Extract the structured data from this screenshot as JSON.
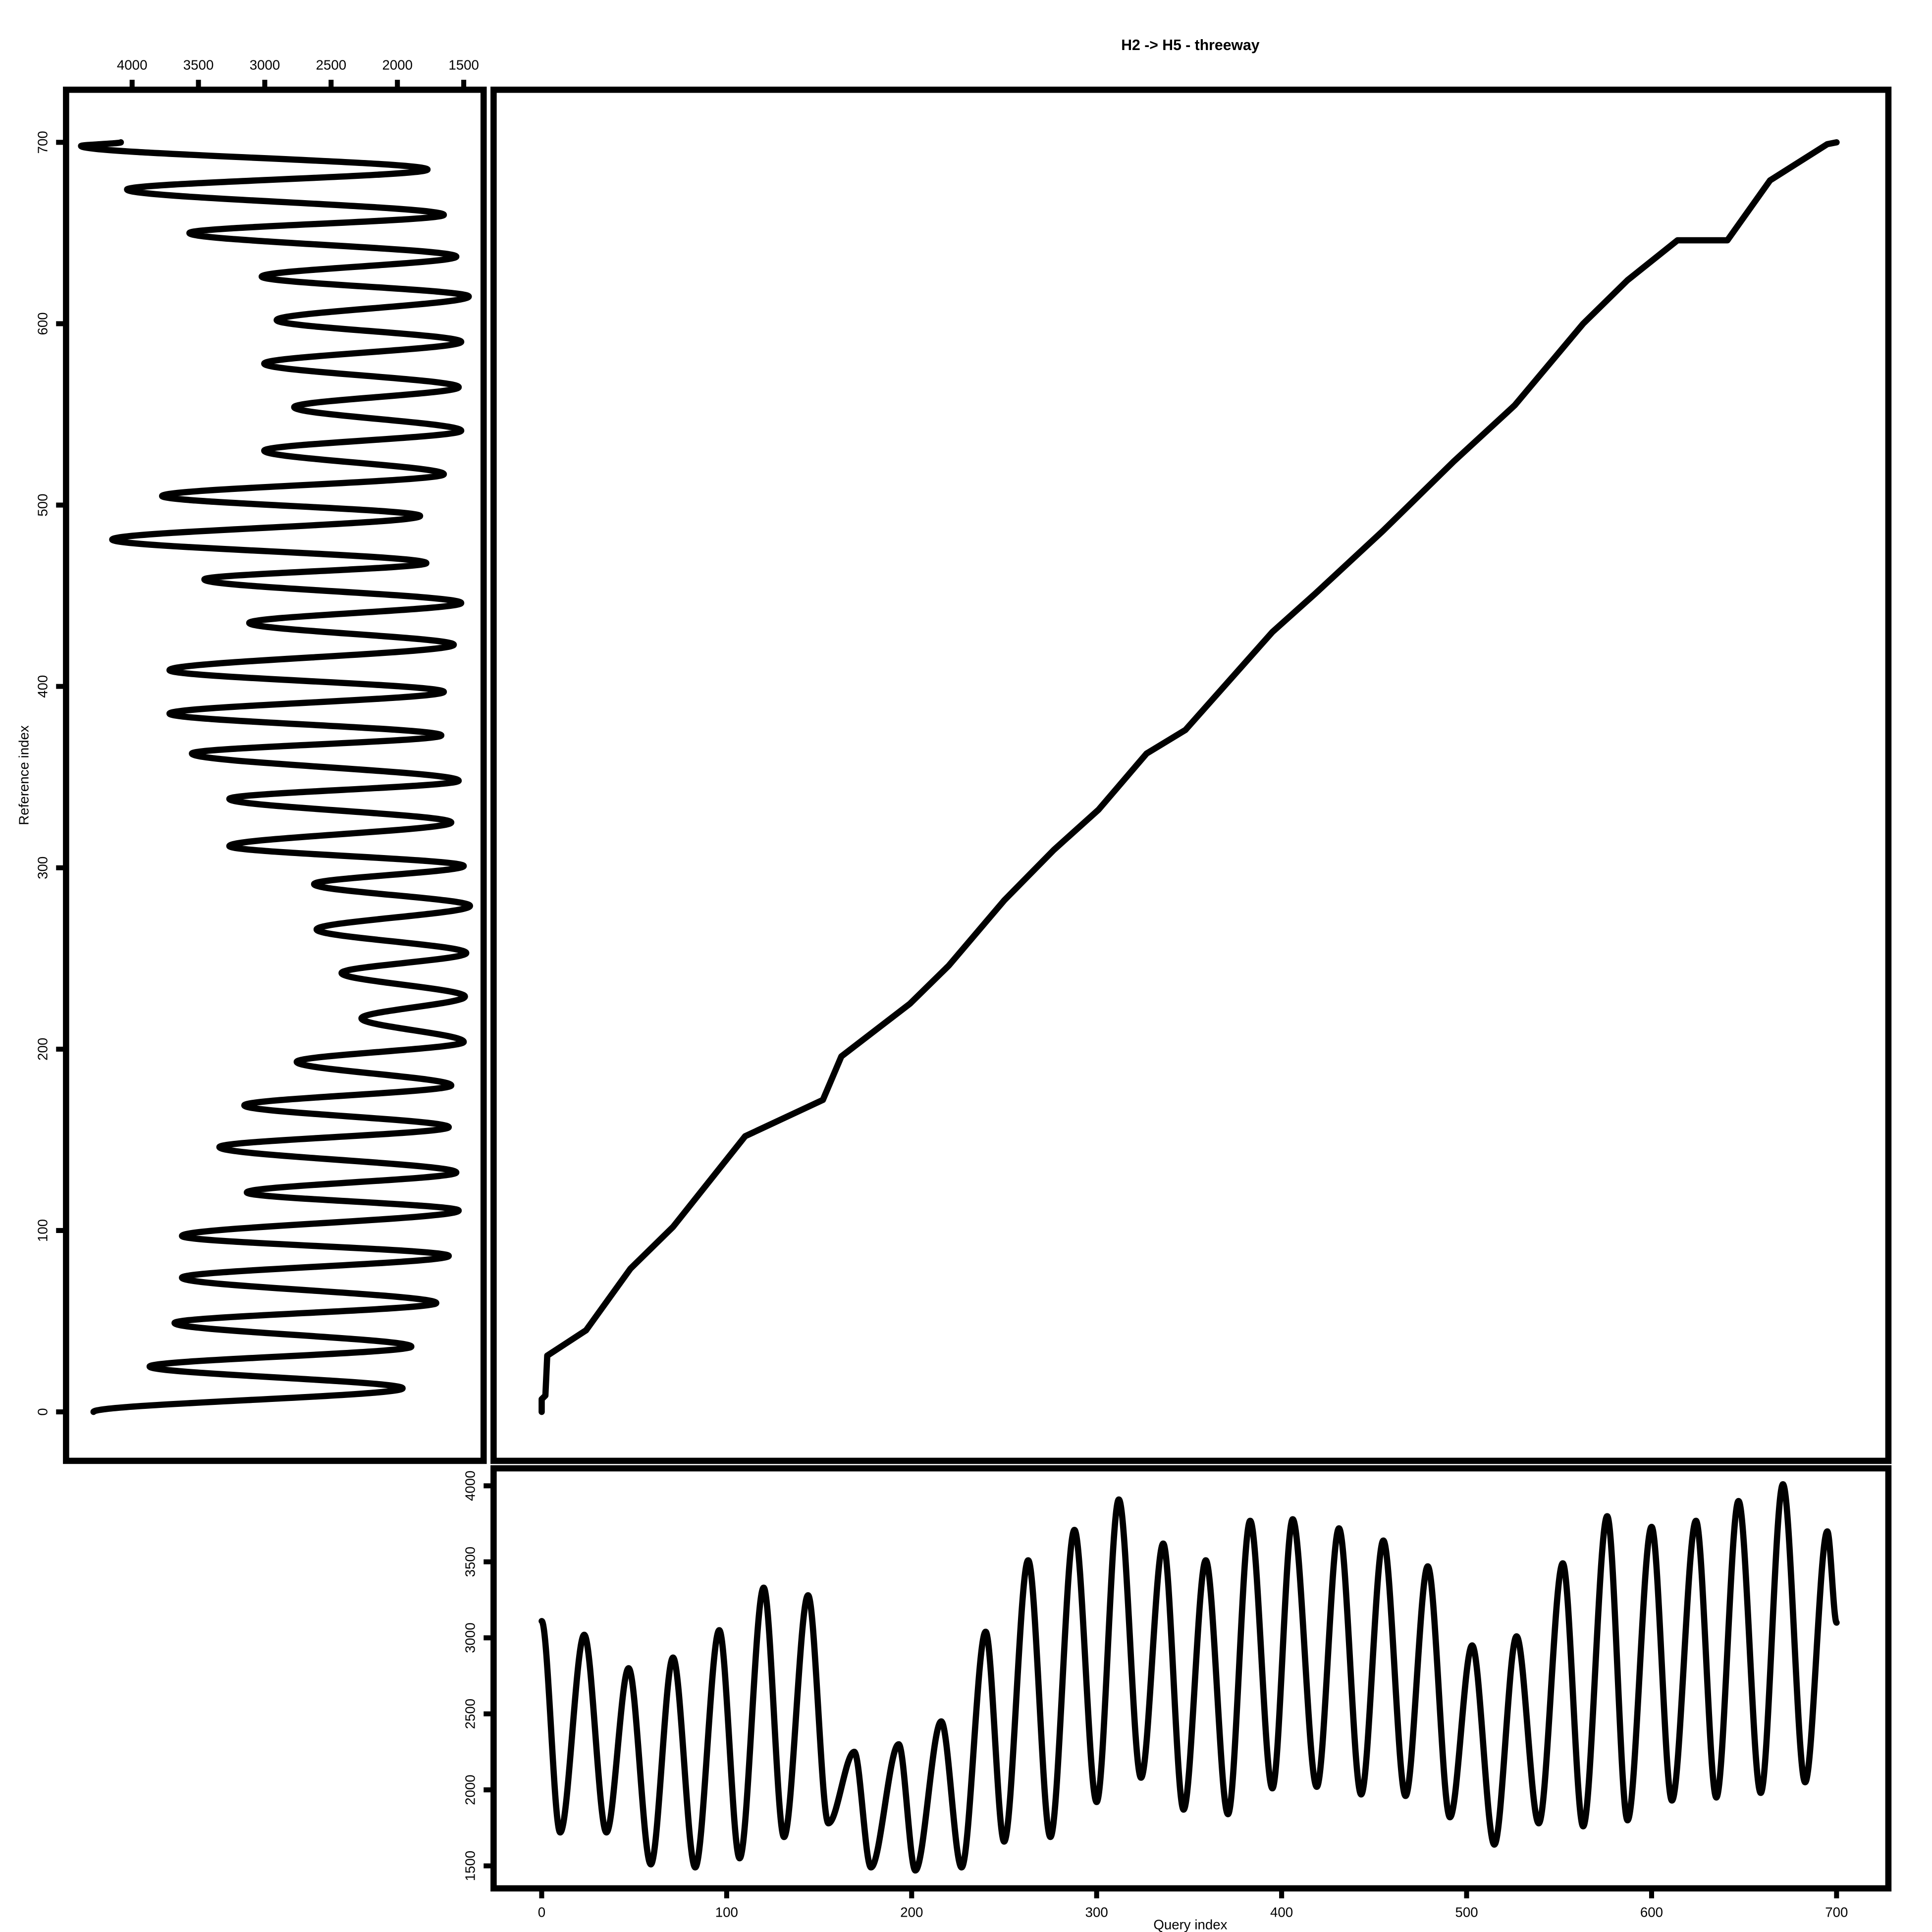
{
  "chart_data": [
    {
      "type": "line",
      "title": "H2 -> H5 - threeway",
      "smooth": false,
      "color": "#000000",
      "xlim": [
        -26,
        728
      ],
      "ylim": [
        -27,
        729
      ],
      "x": [
        0,
        0,
        2,
        3,
        24,
        48,
        71,
        110,
        152,
        162,
        199,
        220,
        250,
        277,
        301,
        327,
        348,
        395,
        418,
        455,
        493,
        526,
        563,
        587,
        614,
        641,
        664,
        695,
        700
      ],
      "values": [
        0,
        7,
        9,
        31,
        45,
        79,
        102,
        152,
        172,
        196,
        225,
        246,
        282,
        310,
        332,
        363,
        376,
        430,
        451,
        486,
        524,
        555,
        600,
        624,
        646,
        646,
        679,
        699,
        700
      ]
    },
    {
      "type": "line",
      "orientation": "horizontal",
      "smooth": true,
      "color": "#000000",
      "ylabel": "Reference index",
      "xlim": [
        4498,
        1350
      ],
      "xticks": [
        4000,
        3500,
        3000,
        2500,
        2000,
        1500
      ],
      "ylim": [
        -27,
        729
      ],
      "yticks": [
        0,
        100,
        200,
        300,
        400,
        500,
        600,
        700
      ],
      "y": [
        0,
        13,
        25,
        36,
        49,
        60,
        74,
        86,
        97,
        111,
        121,
        132,
        146,
        157,
        169,
        180,
        193,
        204,
        217,
        229,
        242,
        253,
        266,
        279,
        291,
        301,
        312,
        325,
        338,
        348,
        363,
        373,
        385,
        397,
        409,
        423,
        435,
        446,
        459,
        468,
        481,
        494,
        505,
        517,
        530,
        541,
        554,
        565,
        578,
        590,
        602,
        615,
        626,
        637,
        650,
        660,
        674,
        685,
        698,
        700
      ],
      "values": [
        4291,
        1961,
        3868,
        1895,
        3680,
        1707,
        3624,
        1613,
        3624,
        1538,
        3135,
        1556,
        3342,
        1613,
        3154,
        1594,
        2759,
        1500,
        2271,
        1491,
        2421,
        1481,
        2609,
        1453,
        2628,
        1500,
        3267,
        1594,
        3267,
        1538,
        3549,
        1669,
        3718,
        1650,
        3718,
        1575,
        3117,
        1519,
        3455,
        1782,
        4150,
        1829,
        3774,
        1650,
        3004,
        1519,
        2778,
        1538,
        3004,
        1519,
        2910,
        1462,
        3023,
        1556,
        3568,
        1650,
        4038,
        1773,
        4385,
        4085
      ]
    },
    {
      "type": "line",
      "smooth": true,
      "color": "#000000",
      "xlabel": "Query index",
      "xlim": [
        -26,
        728
      ],
      "xticks": [
        0,
        100,
        200,
        300,
        400,
        500,
        600,
        700
      ],
      "ylim": [
        1352,
        4115
      ],
      "yticks": [
        1500,
        2000,
        2500,
        3000,
        3500,
        4000
      ],
      "x": [
        0,
        10,
        23,
        35,
        47,
        59,
        71,
        83,
        96,
        107,
        120,
        131,
        144,
        155,
        169,
        178,
        193,
        202,
        216,
        227,
        240,
        250,
        263,
        275,
        288,
        300,
        312,
        324,
        336,
        347,
        359,
        371,
        383,
        395,
        406,
        419,
        431,
        443,
        455,
        467,
        479,
        491,
        503,
        515,
        527,
        539,
        552,
        563,
        576,
        587,
        600,
        611,
        624,
        635,
        647,
        659,
        671,
        683,
        695,
        700
      ],
      "values": [
        3110,
        1720,
        3020,
        1720,
        2800,
        1510,
        2870,
        1490,
        3050,
        1550,
        3330,
        1690,
        3280,
        1780,
        2250,
        1490,
        2300,
        1470,
        2450,
        1490,
        3040,
        1660,
        3510,
        1690,
        3710,
        1920,
        3910,
        2080,
        3620,
        1870,
        3510,
        1840,
        3770,
        2010,
        3780,
        2020,
        3720,
        1970,
        3640,
        1960,
        3470,
        1820,
        2950,
        1640,
        3010,
        1780,
        3490,
        1760,
        3800,
        1800,
        3730,
        1930,
        3770,
        1950,
        3900,
        1980,
        4010,
        2050,
        3700,
        3100
      ]
    }
  ]
}
